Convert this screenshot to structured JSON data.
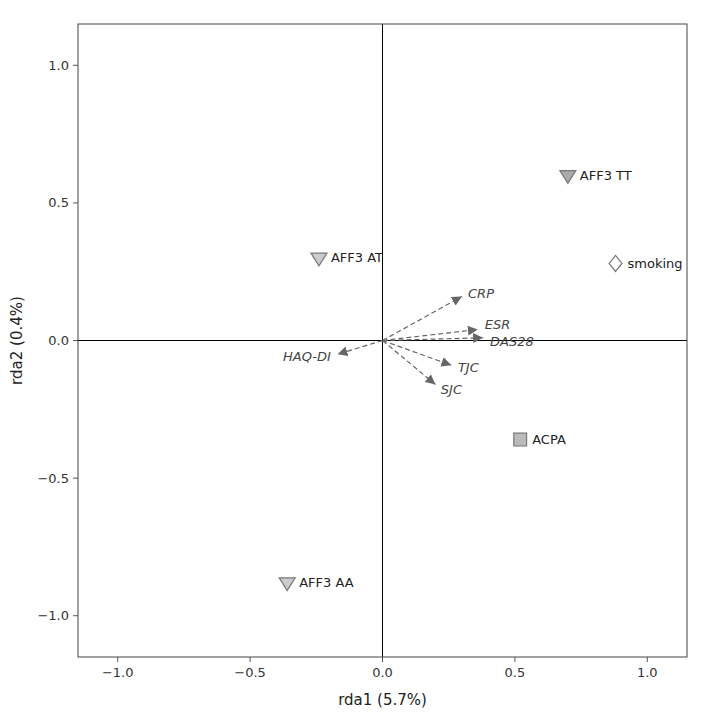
{
  "chart_data": {
    "type": "biplot",
    "xlabel": "rda1 (5.7%)",
    "ylabel": "rda2 (0.4%)",
    "xlim": [
      -1.15,
      1.15
    ],
    "ylim": [
      -1.15,
      1.15
    ],
    "xticks": [
      {
        "value": -1.0,
        "label": "−1.0"
      },
      {
        "value": -0.5,
        "label": "−0.5"
      },
      {
        "value": 0.0,
        "label": "0.0"
      },
      {
        "value": 0.5,
        "label": "0.5"
      },
      {
        "value": 1.0,
        "label": "1.0"
      }
    ],
    "yticks": [
      {
        "value": -1.0,
        "label": "−1.0"
      },
      {
        "value": -0.5,
        "label": "−0.5"
      },
      {
        "value": 0.0,
        "label": "0.0"
      },
      {
        "value": 0.5,
        "label": "0.5"
      },
      {
        "value": 1.0,
        "label": "1.0"
      }
    ],
    "origin": [
      0.0,
      0.0
    ],
    "arrows": [
      {
        "label": "CRP",
        "x": 0.3,
        "y": 0.16
      },
      {
        "label": "ESR",
        "x": 0.36,
        "y": 0.04
      },
      {
        "label": "DAS28",
        "x": 0.38,
        "y": 0.01
      },
      {
        "label": "TJC",
        "x": 0.26,
        "y": -0.09
      },
      {
        "label": "SJC",
        "x": 0.2,
        "y": -0.16
      },
      {
        "label": "HAQ-DI",
        "x": -0.17,
        "y": -0.05
      }
    ],
    "points": [
      {
        "label": "AFF3 TT",
        "x": 0.7,
        "y": 0.6,
        "marker": "triangle-down",
        "color": "#aaaaaa"
      },
      {
        "label": "AFF3 AT",
        "x": -0.24,
        "y": 0.3,
        "marker": "triangle-down",
        "color": "#cccccc"
      },
      {
        "label": "AFF3 AA",
        "x": -0.36,
        "y": -0.88,
        "marker": "triangle-down",
        "color": "#cccccc"
      },
      {
        "label": "ACPA",
        "x": 0.52,
        "y": -0.36,
        "marker": "square",
        "color": "#bbbbbb"
      },
      {
        "label": "smoking",
        "x": 0.88,
        "y": 0.28,
        "marker": "diamond",
        "color": "#ffffff"
      }
    ]
  }
}
